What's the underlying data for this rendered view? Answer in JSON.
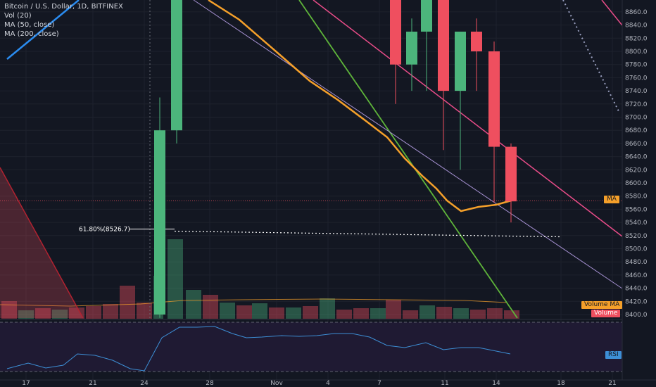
{
  "legend": {
    "title": "Bitcoin / U.S. Dollar, 1D, BITFINEX",
    "vol": "Vol (20)",
    "ma50": "MA (50, close)",
    "ma200": "MA (200, close)"
  },
  "tags": {
    "ma": "MA",
    "volume_ma": "Volume MA",
    "volume": "Volume",
    "rsi": "RSI"
  },
  "fib_label": "61.80%(8526.7)",
  "colors": {
    "background": "#131722",
    "up": "#4cb57c",
    "down": "#ef4f5f",
    "ma50": "#f5a02a",
    "trend_pink": "#e84c88",
    "trend_lavender": "#a48fd0",
    "trend_green": "#5eb43a",
    "trend_blue": "#2a8cf0",
    "rsi_line": "#3d8fd6",
    "rsi_panel": "#1f1a33",
    "grid": "#1e222d",
    "axis_text": "#b2b5be"
  },
  "chart_data": {
    "type": "candlestick",
    "symbol": "BTCUSD",
    "timeframe": "1D",
    "exchange": "BITFINEX",
    "price_axis": {
      "ylim": [
        8390,
        8875
      ],
      "ticks": [
        8860,
        8840,
        8820,
        8800,
        8780,
        8760,
        8740,
        8720,
        8700,
        8680,
        8660,
        8640,
        8620,
        8600,
        8580,
        8560,
        8540,
        8520,
        8500,
        8480,
        8460,
        8440,
        8420,
        8400
      ]
    },
    "time_axis": {
      "ticks": [
        "17",
        "21",
        "24",
        "28",
        "Nov",
        "4",
        "7",
        "11",
        "14",
        "18",
        "21"
      ]
    },
    "candles": [
      {
        "d": "Oct 25",
        "o": 8400,
        "h": 8730,
        "l": 8395,
        "c": 8680
      },
      {
        "d": "Oct 26",
        "o": 8680,
        "h": 8900,
        "l": 8660,
        "c": 8900
      },
      {
        "d": "Nov 8",
        "o": 8900,
        "h": 8900,
        "l": 8720,
        "c": 8780
      },
      {
        "d": "Nov 9",
        "o": 8780,
        "h": 8850,
        "l": 8740,
        "c": 8830
      },
      {
        "d": "Nov 10",
        "o": 8830,
        "h": 8900,
        "l": 8740,
        "c": 8900
      },
      {
        "d": "Nov 11",
        "o": 8900,
        "h": 8900,
        "l": 8650,
        "c": 8740
      },
      {
        "d": "Nov 12",
        "o": 8740,
        "h": 8830,
        "l": 8620,
        "c": 8830
      },
      {
        "d": "Nov 13",
        "o": 8830,
        "h": 8850,
        "l": 8740,
        "c": 8800
      },
      {
        "d": "Nov 14",
        "o": 8800,
        "h": 8815,
        "l": 8570,
        "c": 8655
      },
      {
        "d": "Nov 15",
        "o": 8655,
        "h": 8660,
        "l": 8540,
        "c": 8572
      }
    ],
    "ma50_current": 8573,
    "fibonacci_level": {
      "ratio": "61.80%",
      "price": 8526.7
    },
    "rsi": {
      "period": 14,
      "source": "close"
    },
    "volume_ma_period": 20
  }
}
